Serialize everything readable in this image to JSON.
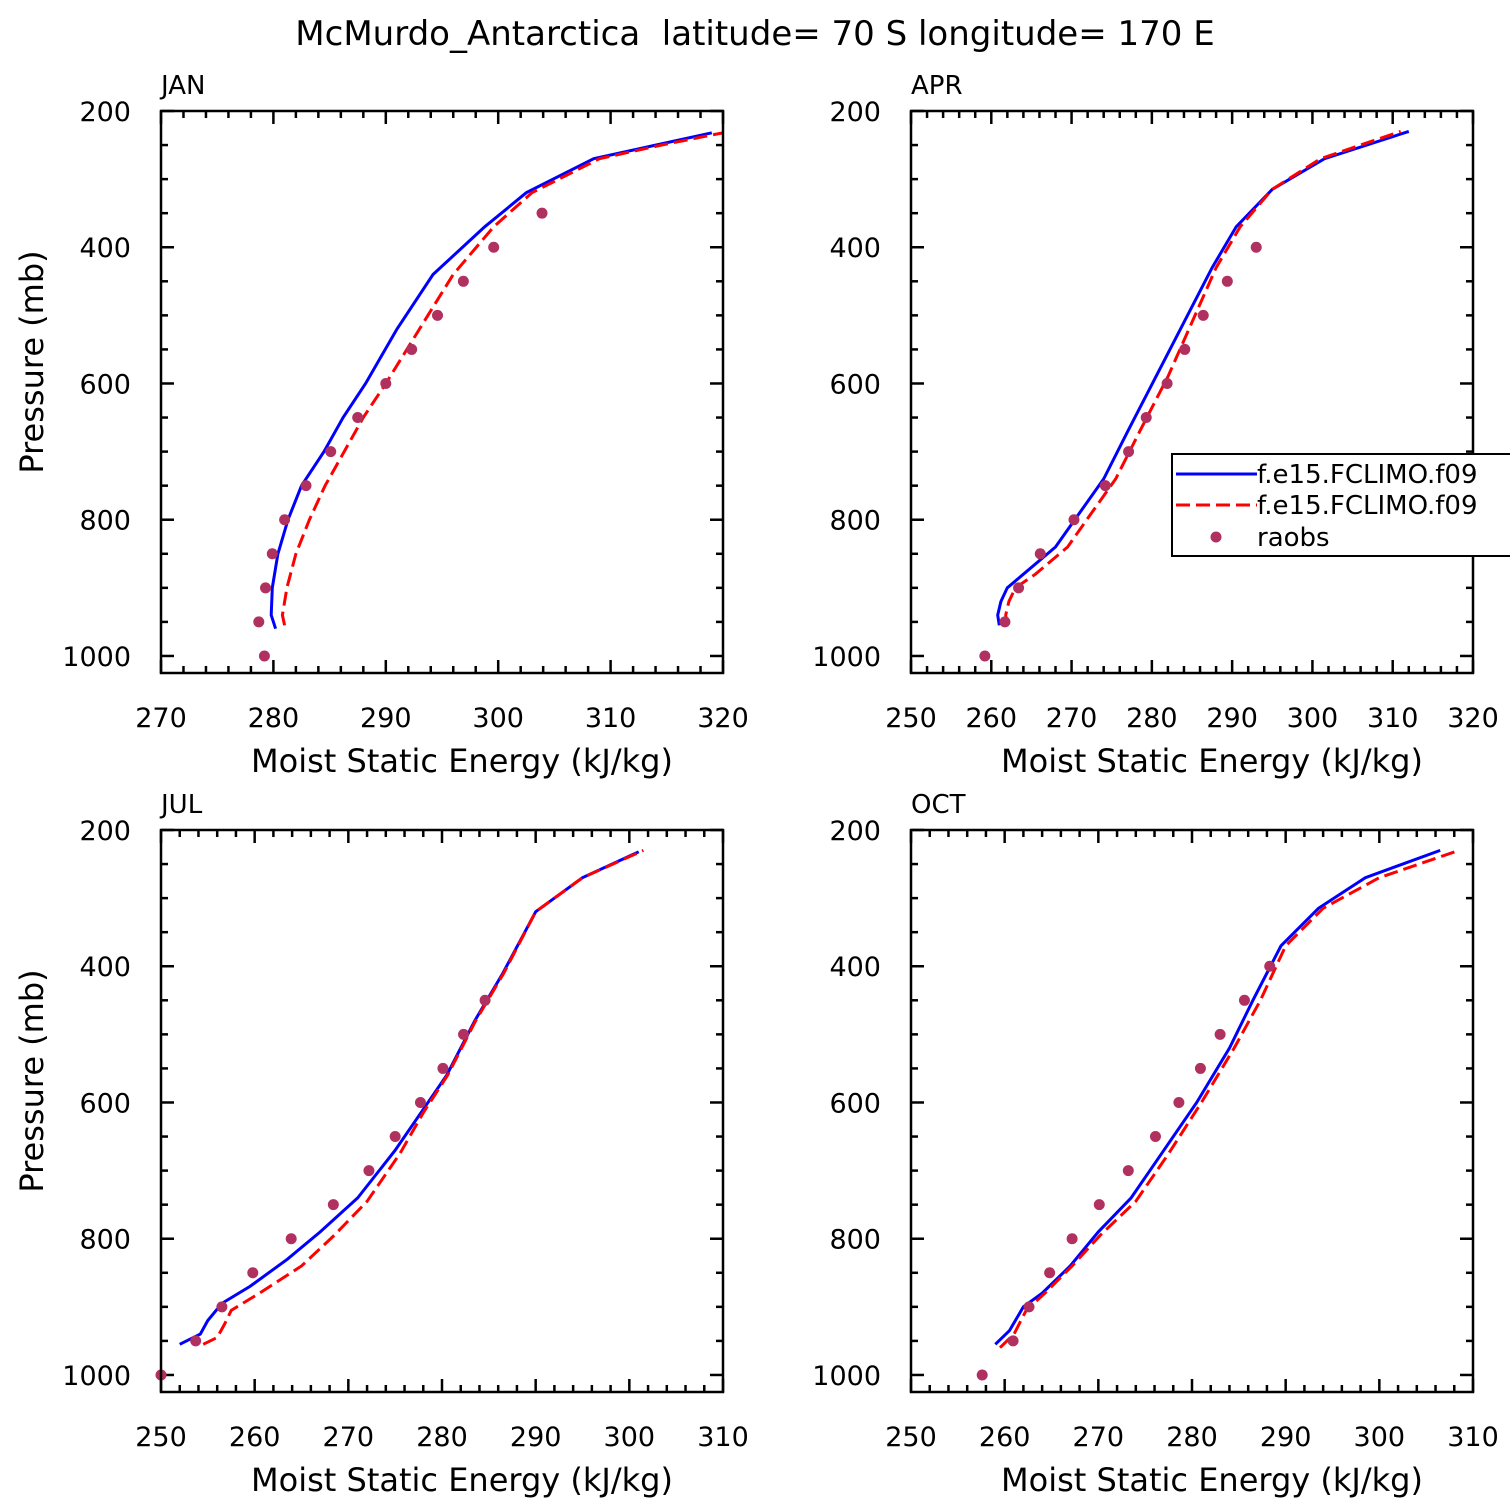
{
  "title": "McMurdo_Antarctica  latitude= 70 S longitude= 170 E",
  "legend": {
    "entries": [
      {
        "label": "f.e15.FCLIMO.f09",
        "style": "solid",
        "color": "#0000ff"
      },
      {
        "label": "f.e15.FCLIMO.f09",
        "style": "dashed",
        "color": "#ff0000"
      },
      {
        "label": "raobs",
        "style": "marker",
        "color": "#b03060"
      }
    ]
  },
  "colors": {
    "model_solid": "#0000ff",
    "model_dashed": "#ff0000",
    "raobs": "#b03060"
  },
  "chart_data": [
    {
      "type": "line",
      "panel_title": "JAN",
      "xlabel": "Moist Static Energy (kJ/kg)",
      "ylabel": "Pressure (mb)",
      "xlim": [
        270,
        320
      ],
      "ylim": [
        1025,
        200
      ],
      "xticks": [
        270,
        280,
        290,
        300,
        310,
        320
      ],
      "yticks": [
        200,
        400,
        600,
        800,
        1000
      ],
      "series": [
        {
          "name": "f.e15.FCLIMO.f09 (solid)",
          "style": "solid",
          "x": [
            280.2,
            279.8,
            279.9,
            280.4,
            281.3,
            282.5,
            284.5,
            286.2,
            288.2,
            291.0,
            294.2,
            298.8,
            302.5,
            308.5,
            314.0,
            319.0
          ],
          "y": [
            960,
            940,
            900,
            850,
            800,
            750,
            700,
            650,
            600,
            520,
            440,
            370,
            320,
            270,
            250,
            232
          ]
        },
        {
          "name": "f.e15.FCLIMO.f09 (dashed)",
          "style": "dashed",
          "x": [
            281.0,
            280.8,
            281.2,
            282.0,
            283.2,
            284.6,
            286.3,
            288.0,
            290.0,
            293.0,
            296.0,
            299.6,
            303.0,
            309.0,
            314.5,
            320.0
          ],
          "y": [
            955,
            940,
            900,
            850,
            800,
            750,
            700,
            650,
            600,
            520,
            440,
            370,
            320,
            270,
            250,
            232
          ]
        },
        {
          "name": "raobs",
          "style": "marker",
          "x": [
            279.2,
            278.7,
            279.3,
            279.9,
            281.0,
            282.9,
            285.1,
            287.5,
            290.0,
            292.3,
            294.6,
            296.9,
            299.6,
            303.9
          ],
          "y": [
            1000,
            950,
            900,
            850,
            800,
            750,
            700,
            650,
            600,
            550,
            500,
            450,
            400,
            350
          ]
        }
      ]
    },
    {
      "type": "line",
      "panel_title": "APR",
      "xlabel": "Moist Static Energy (kJ/kg)",
      "ylabel": "",
      "xlim": [
        250,
        320
      ],
      "ylim": [
        1025,
        200
      ],
      "xticks": [
        250,
        260,
        270,
        280,
        290,
        300,
        310,
        320
      ],
      "yticks": [
        200,
        400,
        600,
        800,
        1000
      ],
      "series": [
        {
          "name": "f.e15.FCLIMO.f09 (solid)",
          "style": "solid",
          "x": [
            261.0,
            260.8,
            261.2,
            262.0,
            264.0,
            268.0,
            271.0,
            274.0,
            277.0,
            280.5,
            284.0,
            287.5,
            290.5,
            295.0,
            301.5,
            312.0
          ],
          "y": [
            955,
            940,
            920,
            900,
            880,
            840,
            790,
            740,
            670,
            590,
            510,
            430,
            370,
            315,
            270,
            230
          ]
        },
        {
          "name": "f.e15.FCLIMO.f09 (dashed)",
          "style": "dashed",
          "x": [
            262.0,
            261.8,
            262.2,
            263.0,
            265.5,
            269.5,
            272.5,
            275.5,
            278.5,
            282.0,
            285.0,
            288.0,
            291.0,
            295.0,
            301.0,
            311.0
          ],
          "y": [
            955,
            940,
            920,
            900,
            880,
            840,
            790,
            740,
            670,
            590,
            510,
            430,
            370,
            315,
            270,
            230
          ]
        },
        {
          "name": "raobs",
          "style": "marker",
          "x": [
            259.2,
            261.7,
            263.4,
            266.1,
            270.3,
            274.2,
            277.1,
            279.3,
            281.9,
            284.1,
            286.4,
            289.4,
            293.0
          ],
          "y": [
            1000,
            950,
            900,
            850,
            800,
            750,
            700,
            650,
            600,
            550,
            500,
            450,
            400
          ]
        }
      ]
    },
    {
      "type": "line",
      "panel_title": "JUL",
      "xlabel": "Moist Static Energy (kJ/kg)",
      "ylabel": "Pressure (mb)",
      "xlim": [
        250,
        310
      ],
      "ylim": [
        1025,
        200
      ],
      "xticks": [
        250,
        260,
        270,
        280,
        290,
        300,
        310
      ],
      "yticks": [
        200,
        400,
        600,
        800,
        1000
      ],
      "series": [
        {
          "name": "f.e15.FCLIMO.f09 (solid)",
          "style": "solid",
          "x": [
            252.0,
            254.2,
            255.0,
            256.5,
            259.5,
            263.5,
            267.0,
            271.0,
            275.0,
            278.0,
            280.5,
            283.5,
            286.5,
            290.0,
            295.0,
            301.0
          ],
          "y": [
            955,
            940,
            920,
            895,
            870,
            830,
            790,
            740,
            670,
            610,
            560,
            480,
            410,
            320,
            270,
            232
          ]
        },
        {
          "name": "f.e15.FCLIMO.f09 (dashed)",
          "style": "dashed",
          "x": [
            254.5,
            256.0,
            256.8,
            257.5,
            260.5,
            265.0,
            268.5,
            272.0,
            275.5,
            278.0,
            280.6,
            283.6,
            286.6,
            290.0,
            295.0,
            301.5
          ],
          "y": [
            955,
            945,
            925,
            905,
            880,
            840,
            795,
            745,
            675,
            615,
            560,
            480,
            410,
            320,
            270,
            230
          ]
        },
        {
          "name": "raobs",
          "style": "marker",
          "x": [
            250.0,
            253.7,
            256.5,
            259.8,
            263.9,
            268.4,
            272.2,
            275.0,
            277.7,
            280.1,
            282.3,
            284.6
          ],
          "y": [
            1000,
            950,
            900,
            850,
            800,
            750,
            700,
            650,
            600,
            550,
            500,
            450
          ]
        }
      ]
    },
    {
      "type": "line",
      "panel_title": "OCT",
      "xlabel": "Moist Static Energy (kJ/kg)",
      "ylabel": "",
      "xlim": [
        250,
        310
      ],
      "ylim": [
        1025,
        200
      ],
      "xticks": [
        250,
        260,
        270,
        280,
        290,
        300,
        310
      ],
      "yticks": [
        200,
        400,
        600,
        800,
        1000
      ],
      "series": [
        {
          "name": "f.e15.FCLIMO.f09 (solid)",
          "style": "solid",
          "x": [
            259.0,
            260.5,
            262.0,
            264.0,
            267.0,
            270.0,
            273.5,
            277.0,
            280.5,
            284.0,
            286.5,
            289.5,
            293.5,
            298.5,
            306.5
          ],
          "y": [
            955,
            935,
            900,
            880,
            840,
            790,
            740,
            670,
            600,
            520,
            450,
            370,
            315,
            270,
            230
          ]
        },
        {
          "name": "f.e15.FCLIMO.f09 (dashed)",
          "style": "dashed",
          "x": [
            259.5,
            261.0,
            262.3,
            264.3,
            267.2,
            270.2,
            274.0,
            277.5,
            281.0,
            284.5,
            287.3,
            290.0,
            294.0,
            300.0,
            308.5
          ],
          "y": [
            960,
            940,
            905,
            880,
            840,
            795,
            745,
            675,
            600,
            520,
            450,
            370,
            315,
            270,
            230
          ]
        },
        {
          "name": "raobs",
          "style": "marker",
          "x": [
            257.6,
            260.9,
            262.6,
            264.8,
            267.2,
            270.1,
            273.2,
            276.1,
            278.6,
            280.9,
            283.0,
            285.6,
            288.3
          ],
          "y": [
            1000,
            950,
            900,
            850,
            800,
            750,
            700,
            650,
            600,
            550,
            500,
            450,
            400
          ]
        }
      ]
    }
  ]
}
